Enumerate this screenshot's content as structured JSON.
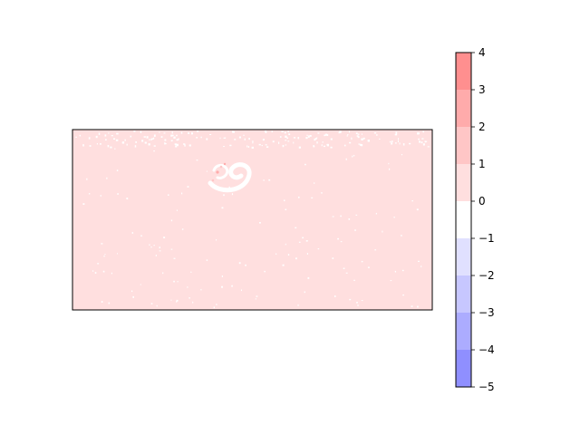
{
  "chart_data": {
    "type": "heatmap",
    "title": "",
    "xlabel": "",
    "ylabel": "",
    "axes_visible": false,
    "field": {
      "dominant_bin": [
        0,
        1
      ],
      "dominant_color": "#ffdfdf",
      "description_of_features": [
        "scattered near-zero (white) speckles",
        "small spiral/comma-shaped feature near upper middle with a few values in 1–2 bin"
      ]
    },
    "colorbar": {
      "levels": [
        -5,
        -4,
        -3,
        -2,
        -1,
        0,
        1,
        2,
        3,
        4
      ],
      "tick_labels": [
        "−5",
        "−4",
        "−3",
        "−2",
        "−1",
        "0",
        "1",
        "2",
        "3",
        "4"
      ],
      "colors": [
        "#8f8fff",
        "#acacff",
        "#c7c7ff",
        "#e0e0ff",
        "#ffffff",
        "#ffdfdf",
        "#ffc6c6",
        "#ffabab",
        "#ff8f8f"
      ]
    }
  }
}
